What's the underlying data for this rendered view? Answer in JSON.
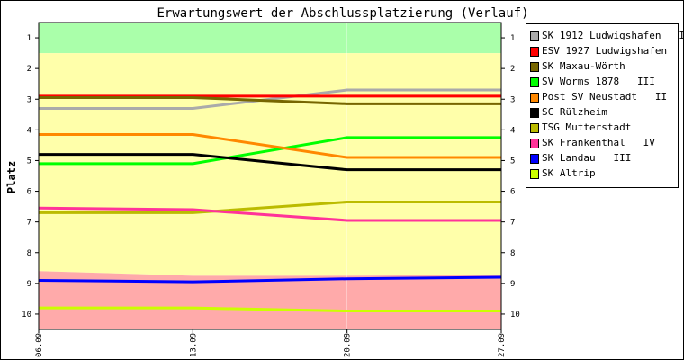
{
  "chart_data": {
    "type": "line",
    "title": "Erwartungswert der Abschlussplatzierung (Verlauf)",
    "xlabel": "",
    "ylabel": "Platz",
    "x": [
      "06.09",
      "13.09",
      "20.09",
      "27.09"
    ],
    "ylim": [
      0.5,
      10.5
    ],
    "y_inverted": true,
    "yticks": [
      1,
      2,
      3,
      4,
      5,
      6,
      7,
      8,
      9,
      10
    ],
    "legend_position": "right",
    "zones": [
      {
        "from_top": [
          0.5,
          0.5,
          0.5,
          0.5
        ],
        "to": [
          1.5,
          1.5,
          1.5,
          1.5
        ],
        "color": "#aaffaa"
      },
      {
        "from_top": [
          1.5,
          1.5,
          1.5,
          1.5
        ],
        "to": [
          8.6,
          8.75,
          8.75,
          8.72
        ],
        "color": "#ffffaa"
      },
      {
        "from_top": [
          8.6,
          8.75,
          8.75,
          8.72
        ],
        "to": [
          10.5,
          10.5,
          10.5,
          10.5
        ],
        "color": "#ffaaaa"
      }
    ],
    "series": [
      {
        "name": "SK 1912 Ludwigshafen   II",
        "color": "#aaaaaa",
        "values": [
          3.3,
          3.3,
          2.7,
          2.7
        ]
      },
      {
        "name": "ESV 1927 Ludwigshafen",
        "color": "#ff0000",
        "values": [
          2.9,
          2.9,
          2.9,
          2.9
        ]
      },
      {
        "name": "SK Maxau-Wörth",
        "color": "#776600",
        "values": [
          2.95,
          2.95,
          3.15,
          3.15
        ]
      },
      {
        "name": "SV Worms 1878   III",
        "color": "#00ff00",
        "values": [
          5.1,
          5.1,
          4.25,
          4.25
        ]
      },
      {
        "name": "Post SV Neustadt   II",
        "color": "#ff8800",
        "values": [
          4.15,
          4.15,
          4.9,
          4.9
        ]
      },
      {
        "name": "SC Rülzheim",
        "color": "#000000",
        "values": [
          4.8,
          4.8,
          5.3,
          5.3
        ]
      },
      {
        "name": "TSG Mutterstadt",
        "color": "#bbbb00",
        "values": [
          6.7,
          6.7,
          6.35,
          6.35
        ]
      },
      {
        "name": "SK Frankenthal   IV",
        "color": "#ff3399",
        "values": [
          6.55,
          6.6,
          6.95,
          6.95
        ]
      },
      {
        "name": "SK Landau   III",
        "color": "#0000ff",
        "values": [
          8.9,
          8.95,
          8.85,
          8.8
        ]
      },
      {
        "name": "SK Altrip",
        "color": "#ccff00",
        "values": [
          9.8,
          9.8,
          9.9,
          9.9
        ]
      }
    ]
  }
}
